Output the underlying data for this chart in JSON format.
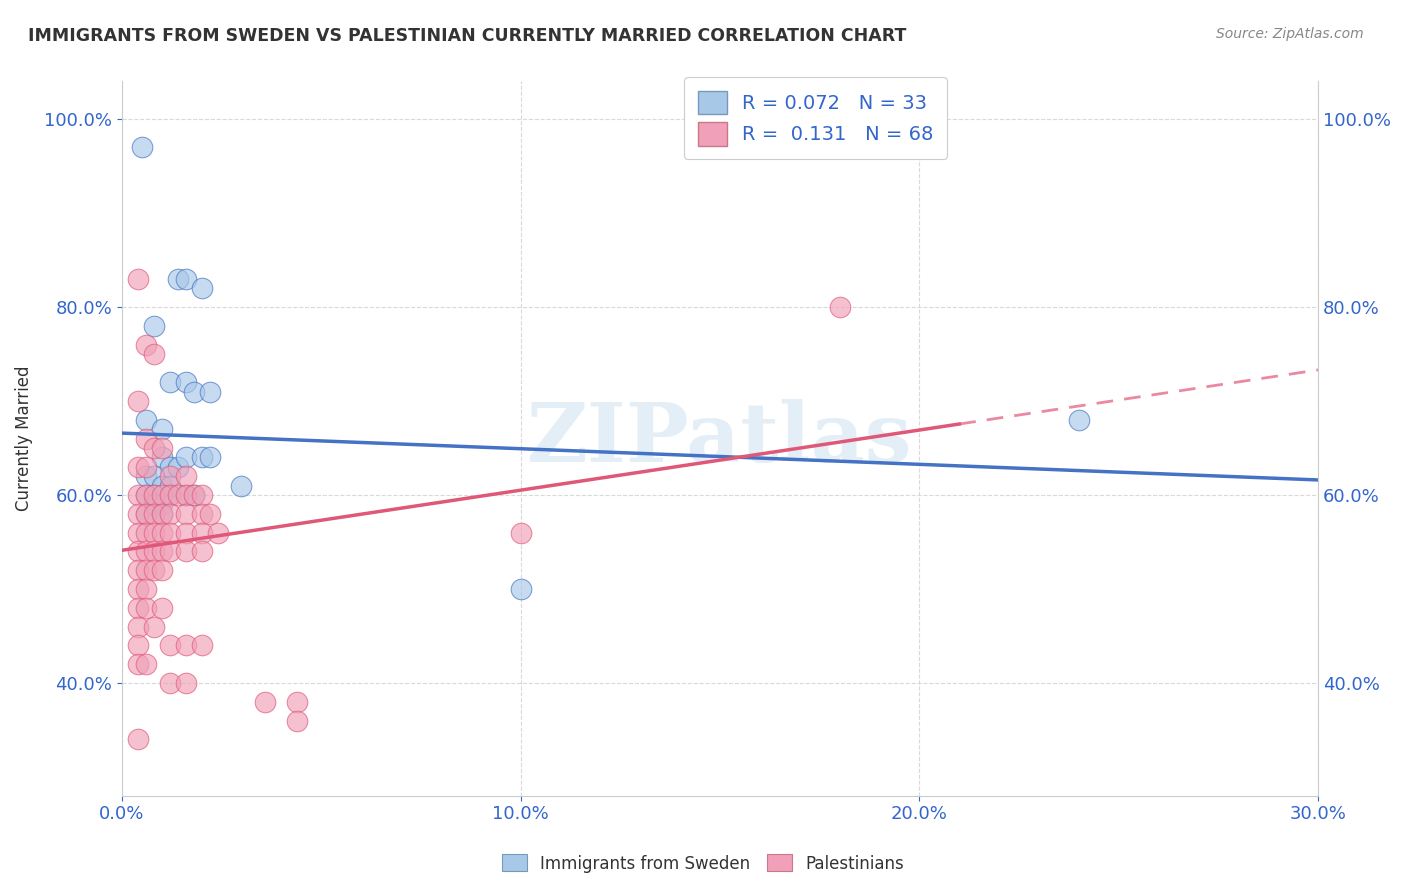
{
  "title": "IMMIGRANTS FROM SWEDEN VS PALESTINIAN CURRENTLY MARRIED CORRELATION CHART",
  "source": "Source: ZipAtlas.com",
  "ylabel_label": "Currently Married",
  "xlim": [
    0.0,
    0.3
  ],
  "ylim": [
    0.28,
    1.04
  ],
  "xtick_vals": [
    0.0,
    0.1,
    0.2,
    0.3
  ],
  "ytick_vals": [
    0.4,
    0.6,
    0.8,
    1.0
  ],
  "sweden_R": "0.072",
  "sweden_N": "33",
  "palestine_R": "0.131",
  "palestine_N": "68",
  "sweden_color": "#a8c8e8",
  "palestine_color": "#f0a0b8",
  "sweden_line_color": "#4472c4",
  "palestine_line_color": "#e05878",
  "legend_label_sweden": "Immigrants from Sweden",
  "legend_label_palestine": "Palestinians",
  "sweden_scatter": [
    [
      0.005,
      0.97
    ],
    [
      0.014,
      0.83
    ],
    [
      0.016,
      0.83
    ],
    [
      0.02,
      0.82
    ],
    [
      0.008,
      0.78
    ],
    [
      0.012,
      0.72
    ],
    [
      0.016,
      0.72
    ],
    [
      0.018,
      0.71
    ],
    [
      0.022,
      0.71
    ],
    [
      0.006,
      0.68
    ],
    [
      0.01,
      0.67
    ],
    [
      0.01,
      0.64
    ],
    [
      0.012,
      0.63
    ],
    [
      0.014,
      0.63
    ],
    [
      0.016,
      0.64
    ],
    [
      0.02,
      0.64
    ],
    [
      0.022,
      0.64
    ],
    [
      0.006,
      0.62
    ],
    [
      0.008,
      0.62
    ],
    [
      0.01,
      0.61
    ],
    [
      0.012,
      0.61
    ],
    [
      0.006,
      0.6
    ],
    [
      0.008,
      0.6
    ],
    [
      0.01,
      0.59
    ],
    [
      0.012,
      0.6
    ],
    [
      0.016,
      0.6
    ],
    [
      0.018,
      0.6
    ],
    [
      0.006,
      0.58
    ],
    [
      0.008,
      0.59
    ],
    [
      0.01,
      0.58
    ],
    [
      0.03,
      0.61
    ],
    [
      0.24,
      0.68
    ],
    [
      0.1,
      0.5
    ]
  ],
  "palestine_scatter": [
    [
      0.004,
      0.83
    ],
    [
      0.006,
      0.76
    ],
    [
      0.008,
      0.75
    ],
    [
      0.004,
      0.7
    ],
    [
      0.006,
      0.66
    ],
    [
      0.008,
      0.65
    ],
    [
      0.01,
      0.65
    ],
    [
      0.004,
      0.63
    ],
    [
      0.006,
      0.63
    ],
    [
      0.012,
      0.62
    ],
    [
      0.016,
      0.62
    ],
    [
      0.004,
      0.6
    ],
    [
      0.006,
      0.6
    ],
    [
      0.008,
      0.6
    ],
    [
      0.01,
      0.6
    ],
    [
      0.012,
      0.6
    ],
    [
      0.014,
      0.6
    ],
    [
      0.016,
      0.6
    ],
    [
      0.018,
      0.6
    ],
    [
      0.02,
      0.6
    ],
    [
      0.004,
      0.58
    ],
    [
      0.006,
      0.58
    ],
    [
      0.008,
      0.58
    ],
    [
      0.01,
      0.58
    ],
    [
      0.012,
      0.58
    ],
    [
      0.016,
      0.58
    ],
    [
      0.02,
      0.58
    ],
    [
      0.022,
      0.58
    ],
    [
      0.004,
      0.56
    ],
    [
      0.006,
      0.56
    ],
    [
      0.008,
      0.56
    ],
    [
      0.01,
      0.56
    ],
    [
      0.012,
      0.56
    ],
    [
      0.016,
      0.56
    ],
    [
      0.02,
      0.56
    ],
    [
      0.024,
      0.56
    ],
    [
      0.004,
      0.54
    ],
    [
      0.006,
      0.54
    ],
    [
      0.008,
      0.54
    ],
    [
      0.01,
      0.54
    ],
    [
      0.012,
      0.54
    ],
    [
      0.016,
      0.54
    ],
    [
      0.02,
      0.54
    ],
    [
      0.004,
      0.52
    ],
    [
      0.006,
      0.52
    ],
    [
      0.008,
      0.52
    ],
    [
      0.01,
      0.52
    ],
    [
      0.004,
      0.5
    ],
    [
      0.006,
      0.5
    ],
    [
      0.004,
      0.48
    ],
    [
      0.006,
      0.48
    ],
    [
      0.01,
      0.48
    ],
    [
      0.004,
      0.46
    ],
    [
      0.008,
      0.46
    ],
    [
      0.004,
      0.44
    ],
    [
      0.004,
      0.42
    ],
    [
      0.006,
      0.42
    ],
    [
      0.012,
      0.44
    ],
    [
      0.016,
      0.44
    ],
    [
      0.02,
      0.44
    ],
    [
      0.012,
      0.4
    ],
    [
      0.016,
      0.4
    ],
    [
      0.036,
      0.38
    ],
    [
      0.044,
      0.38
    ],
    [
      0.044,
      0.36
    ],
    [
      0.004,
      0.34
    ],
    [
      0.18,
      0.8
    ],
    [
      0.1,
      0.56
    ]
  ],
  "watermark": "ZIPatlas",
  "background_color": "#ffffff",
  "grid_color": "#d0d0d0"
}
